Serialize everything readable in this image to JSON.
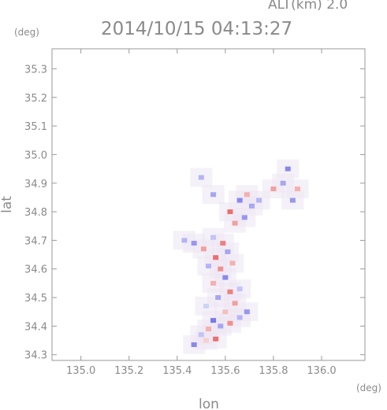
{
  "header": {
    "altitude_label": "ALT(km) 2.0",
    "timestamp": "2014/10/15 04:13:27",
    "unit_left": "(deg)",
    "unit_right": "(deg)"
  },
  "chart_data": {
    "type": "heatmap",
    "xlabel": "lon",
    "ylabel": "lat",
    "xlim": [
      134.88,
      136.18
    ],
    "ylim": [
      34.28,
      35.37
    ],
    "x_ticks": [
      "135.0",
      "135.2",
      "135.4",
      "135.6",
      "135.8",
      "136.0"
    ],
    "x_tick_values": [
      135.0,
      135.2,
      135.4,
      135.6,
      135.8,
      136.0
    ],
    "y_ticks": [
      "34.3",
      "34.4",
      "34.5",
      "34.6",
      "34.7",
      "34.8",
      "34.9",
      "35.0",
      "35.1",
      "35.2",
      "35.3"
    ],
    "y_tick_values": [
      34.3,
      34.4,
      34.5,
      34.6,
      34.7,
      34.8,
      34.9,
      35.0,
      35.1,
      35.2,
      35.3
    ],
    "colors": {
      "positive": "#e86060",
      "negative": "#6a6ae8",
      "neutral": "#ece6f2",
      "axis": "#9a9a9a"
    },
    "cells": [
      {
        "lon": 135.47,
        "lat": 34.335,
        "v": -0.8
      },
      {
        "lon": 135.52,
        "lat": 34.35,
        "v": 0.3
      },
      {
        "lon": 135.56,
        "lat": 34.355,
        "v": 0.9
      },
      {
        "lon": 135.5,
        "lat": 34.37,
        "v": -0.4
      },
      {
        "lon": 135.53,
        "lat": 34.39,
        "v": 0.5
      },
      {
        "lon": 135.58,
        "lat": 34.4,
        "v": -0.6
      },
      {
        "lon": 135.62,
        "lat": 34.41,
        "v": 0.7
      },
      {
        "lon": 135.55,
        "lat": 34.42,
        "v": -0.9
      },
      {
        "lon": 135.66,
        "lat": 34.43,
        "v": -0.5
      },
      {
        "lon": 135.6,
        "lat": 34.45,
        "v": 0.4
      },
      {
        "lon": 135.69,
        "lat": 34.45,
        "v": -0.7
      },
      {
        "lon": 135.52,
        "lat": 34.47,
        "v": -0.3
      },
      {
        "lon": 135.64,
        "lat": 34.48,
        "v": 0.6
      },
      {
        "lon": 135.57,
        "lat": 34.5,
        "v": -0.6
      },
      {
        "lon": 135.62,
        "lat": 34.52,
        "v": 0.8
      },
      {
        "lon": 135.66,
        "lat": 34.53,
        "v": -0.4
      },
      {
        "lon": 135.55,
        "lat": 34.55,
        "v": 0.5
      },
      {
        "lon": 135.6,
        "lat": 34.57,
        "v": -0.8
      },
      {
        "lon": 135.58,
        "lat": 34.6,
        "v": 0.7
      },
      {
        "lon": 135.53,
        "lat": 34.61,
        "v": -0.5
      },
      {
        "lon": 135.63,
        "lat": 34.62,
        "v": 0.5
      },
      {
        "lon": 135.56,
        "lat": 34.64,
        "v": 0.9
      },
      {
        "lon": 135.61,
        "lat": 34.66,
        "v": -0.6
      },
      {
        "lon": 135.51,
        "lat": 34.67,
        "v": 0.6
      },
      {
        "lon": 135.59,
        "lat": 34.69,
        "v": 0.8
      },
      {
        "lon": 135.55,
        "lat": 34.71,
        "v": -0.4
      },
      {
        "lon": 135.47,
        "lat": 34.69,
        "v": -0.7
      },
      {
        "lon": 135.43,
        "lat": 34.7,
        "v": -0.5
      },
      {
        "lon": 135.64,
        "lat": 34.76,
        "v": 0.6
      },
      {
        "lon": 135.68,
        "lat": 34.78,
        "v": -0.7
      },
      {
        "lon": 135.62,
        "lat": 34.8,
        "v": 0.9
      },
      {
        "lon": 135.71,
        "lat": 34.82,
        "v": -0.6
      },
      {
        "lon": 135.66,
        "lat": 34.84,
        "v": -0.8
      },
      {
        "lon": 135.69,
        "lat": 34.86,
        "v": 0.5
      },
      {
        "lon": 135.74,
        "lat": 34.84,
        "v": -0.5
      },
      {
        "lon": 135.55,
        "lat": 34.86,
        "v": -0.6
      },
      {
        "lon": 135.5,
        "lat": 34.92,
        "v": -0.5
      },
      {
        "lon": 135.8,
        "lat": 34.88,
        "v": 0.6
      },
      {
        "lon": 135.84,
        "lat": 34.9,
        "v": -0.6
      },
      {
        "lon": 135.86,
        "lat": 34.95,
        "v": -0.8
      },
      {
        "lon": 135.9,
        "lat": 34.88,
        "v": 0.5
      },
      {
        "lon": 135.88,
        "lat": 34.84,
        "v": -0.7
      }
    ]
  }
}
